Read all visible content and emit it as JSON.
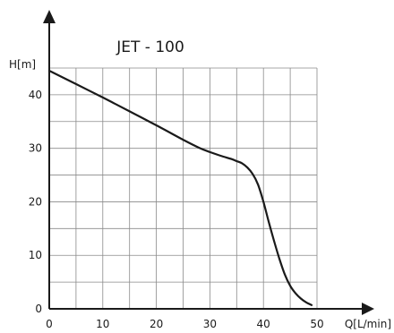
{
  "chart_data": {
    "type": "line",
    "title": "JET - 100",
    "xlabel": "Q[L/min]",
    "ylabel": "H[m]",
    "xlim": [
      0,
      50
    ],
    "ylim": [
      0,
      45
    ],
    "grid": true,
    "x_ticks": [
      0,
      10,
      20,
      30,
      40,
      50
    ],
    "y_ticks": [
      0,
      10,
      20,
      30,
      40
    ],
    "series": [
      {
        "color": "#1a1a1a",
        "x": [
          0,
          5,
          10,
          15,
          20,
          25,
          28,
          30,
          32,
          34,
          35,
          36,
          37,
          38,
          39,
          40,
          41,
          42,
          43,
          44,
          45,
          46,
          47,
          48,
          49
        ],
        "y": [
          44.5,
          42.0,
          39.5,
          36.9,
          34.3,
          31.6,
          30.1,
          29.3,
          28.6,
          28.0,
          27.6,
          27.2,
          26.4,
          25.2,
          23.2,
          20.0,
          16.2,
          12.6,
          9.3,
          6.4,
          4.3,
          2.9,
          1.9,
          1.2,
          0.7
        ]
      }
    ]
  }
}
